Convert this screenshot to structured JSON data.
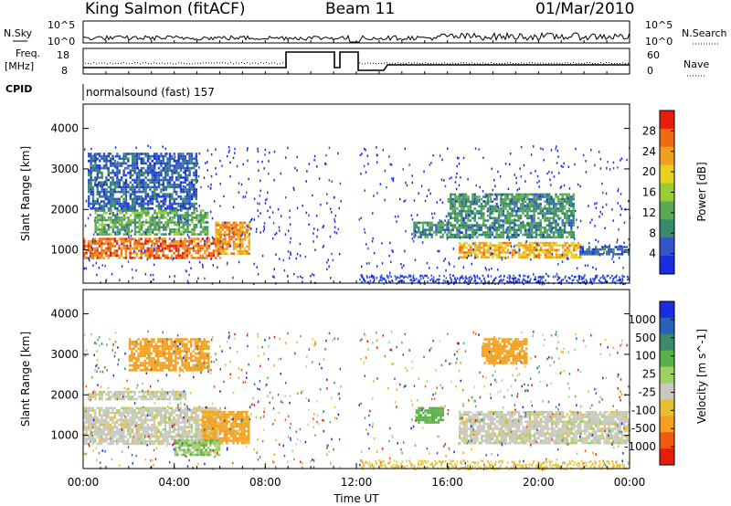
{
  "header": {
    "station": "King Salmon (fitACF)",
    "beam": "Beam 11",
    "date": "01/Mar/2010"
  },
  "top_panel": {
    "nsky_label": "N.Sky",
    "nsearch_label": "N.Search",
    "nsky_ticks": [
      "10^5",
      "10^0"
    ],
    "nsearch_ticks": [
      "10^5",
      "10^0"
    ],
    "freq_label": "Freq.",
    "freq_unit": "[MHz]",
    "freq_ticks": [
      "18",
      "8"
    ],
    "nave_label": "Nave",
    "nave_ticks": [
      "60",
      "0"
    ],
    "cpid_label": "CPID",
    "cpid_text": "normalsound (fast) 157"
  },
  "colors": {
    "power": [
      "#1a2ee0",
      "#2f55c8",
      "#3a8a6a",
      "#5aaa55",
      "#9acd32",
      "#e6d21e",
      "#f0a020",
      "#f06a10",
      "#e81c0c"
    ],
    "velocity": [
      "#e81c0c",
      "#f05a10",
      "#f5a020",
      "#e6c030",
      "#c8c8c0",
      "#9cd060",
      "#58b048",
      "#3c8a6a",
      "#2a62b8",
      "#1a2ee0"
    ],
    "mode_line": "#000000"
  },
  "chart_data": [
    {
      "type": "heatmap",
      "panel": "power",
      "xlabel": "Time UT",
      "ylabel": "Slant Range [km]",
      "x_ticks": [
        "00:00",
        "04:00",
        "08:00",
        "12:00",
        "16:00",
        "20:00",
        "00:00"
      ],
      "y_ticks": [
        1000,
        2000,
        3000,
        4000
      ],
      "xlim_hours": [
        0,
        24
      ],
      "ylim_km": [
        180,
        4600
      ],
      "colorbar": {
        "label": "Power [dB]",
        "ticks": [
          4,
          8,
          12,
          16,
          20,
          24,
          28
        ],
        "range": [
          0,
          32
        ]
      },
      "echo_regions": [
        {
          "t_start": 0.0,
          "t_end": 6.0,
          "range_start_km": 800,
          "range_end_km": 1300,
          "power_db": 26
        },
        {
          "t_start": 0.5,
          "t_end": 5.5,
          "range_start_km": 1400,
          "range_end_km": 2000,
          "power_db": 12
        },
        {
          "t_start": 0.2,
          "t_end": 5.0,
          "range_start_km": 2000,
          "range_end_km": 3400,
          "power_db": 6
        },
        {
          "t_start": 5.8,
          "t_end": 7.3,
          "range_start_km": 900,
          "range_end_km": 1700,
          "power_db": 24
        },
        {
          "t_start": 14.5,
          "t_end": 16.0,
          "range_start_km": 1300,
          "range_end_km": 1700,
          "power_db": 10
        },
        {
          "t_start": 16.5,
          "t_end": 21.8,
          "range_start_km": 800,
          "range_end_km": 1200,
          "power_db": 22
        },
        {
          "t_start": 16.0,
          "t_end": 21.5,
          "range_start_km": 1300,
          "range_end_km": 2400,
          "power_db": 10
        },
        {
          "t_start": 21.8,
          "t_end": 24.0,
          "range_start_km": 900,
          "range_end_km": 1100,
          "power_db": 6
        }
      ]
    },
    {
      "type": "heatmap",
      "panel": "velocity",
      "xlabel": "Time UT",
      "ylabel": "Slant Range [km]",
      "x_ticks": [
        "00:00",
        "04:00",
        "08:00",
        "12:00",
        "16:00",
        "20:00",
        "00:00"
      ],
      "y_ticks": [
        1000,
        2000,
        3000,
        4000
      ],
      "xlim_hours": [
        0,
        24
      ],
      "ylim_km": [
        180,
        4600
      ],
      "colorbar": {
        "label": "Velocity [m s^-1]",
        "ticks": [
          1000,
          500,
          100,
          25,
          -25,
          -100,
          -500,
          -1000
        ]
      },
      "echo_regions": [
        {
          "t_start": 0.0,
          "t_end": 6.0,
          "range_start_km": 800,
          "range_end_km": 1700,
          "velocity_ms": 0
        },
        {
          "t_start": 0.2,
          "t_end": 4.5,
          "range_start_km": 1900,
          "range_end_km": 2100,
          "velocity_ms": 0
        },
        {
          "t_start": 2.0,
          "t_end": 5.5,
          "range_start_km": 2600,
          "range_end_km": 3400,
          "velocity_ms": -300
        },
        {
          "t_start": 5.2,
          "t_end": 7.3,
          "range_start_km": 800,
          "range_end_km": 1600,
          "velocity_ms": -200
        },
        {
          "t_start": 4.0,
          "t_end": 6.0,
          "range_start_km": 500,
          "range_end_km": 900,
          "velocity_ms": 80
        },
        {
          "t_start": 14.6,
          "t_end": 15.8,
          "range_start_km": 1300,
          "range_end_km": 1700,
          "velocity_ms": 300
        },
        {
          "t_start": 16.5,
          "t_end": 24.0,
          "range_start_km": 800,
          "range_end_km": 1600,
          "velocity_ms": 0
        },
        {
          "t_start": 17.5,
          "t_end": 19.5,
          "range_start_km": 2800,
          "range_end_km": 3400,
          "velocity_ms": -300
        }
      ]
    }
  ]
}
